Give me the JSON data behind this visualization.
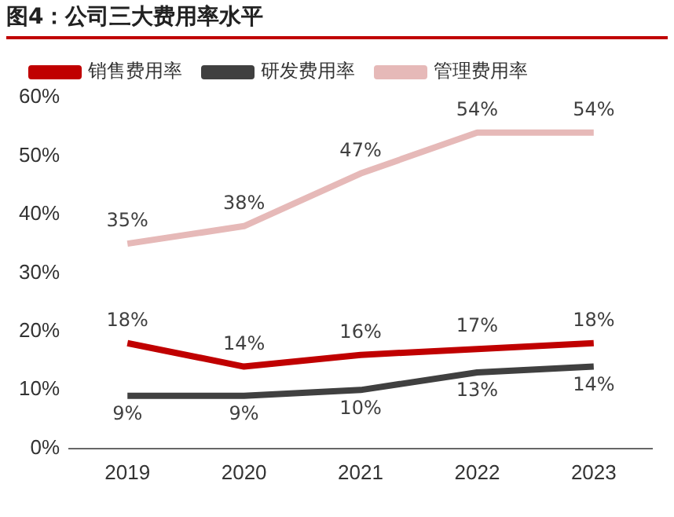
{
  "chart_data": {
    "type": "line",
    "title": "图4：公司三大费用率水平",
    "categories": [
      "2019",
      "2020",
      "2021",
      "2022",
      "2023"
    ],
    "series": [
      {
        "name": "销售费用率",
        "color": "#c00000",
        "values": [
          18,
          14,
          16,
          17,
          18
        ],
        "value_labels": [
          "18%",
          "14%",
          "16%",
          "17%",
          "18%"
        ]
      },
      {
        "name": "研发费用率",
        "color": "#404040",
        "values": [
          9,
          9,
          10,
          13,
          14
        ],
        "value_labels": [
          "9%",
          "9%",
          "10%",
          "13%",
          "14%"
        ]
      },
      {
        "name": "管理费用率",
        "color": "#e6b9b8",
        "values": [
          35,
          38,
          47,
          54,
          54
        ],
        "value_labels": [
          "35%",
          "38%",
          "47%",
          "54%",
          "54%"
        ]
      }
    ],
    "ylim": [
      0,
      60
    ],
    "yticks": [
      {
        "value": 0,
        "label": "0%"
      },
      {
        "value": 10,
        "label": "10%"
      },
      {
        "value": 20,
        "label": "20%"
      },
      {
        "value": 30,
        "label": "30%"
      },
      {
        "value": 40,
        "label": "40%"
      },
      {
        "value": 50,
        "label": "50%"
      },
      {
        "value": 60,
        "label": "60%"
      }
    ],
    "grid": false,
    "legend": "top",
    "marker": "none",
    "line_style": "solid"
  }
}
